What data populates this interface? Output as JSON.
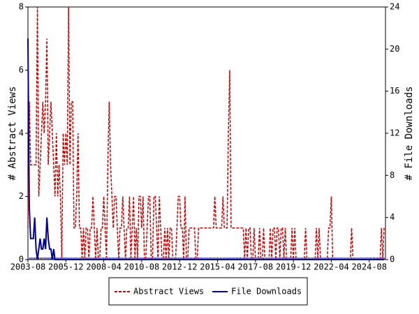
{
  "chart_data": {
    "type": "line",
    "xticks": [
      "2003-08",
      "2005-12",
      "2008-04",
      "2010-08",
      "2012-12",
      "2015-04",
      "2017-08",
      "2019-12",
      "2022-04",
      "2024-08"
    ],
    "ylabel": "# Abstract Views",
    "y2label": "# File Downloads",
    "ylim": [
      0,
      8
    ],
    "yticks": [
      0,
      2,
      4,
      6,
      8
    ],
    "y2lim": [
      0,
      24
    ],
    "y2ticks": [
      0,
      4,
      8,
      12,
      16,
      20,
      24
    ],
    "legend": "bottom",
    "x": [
      "2003-08",
      "2003-09",
      "2003-10",
      "2003-11",
      "2003-12",
      "2004-01",
      "2004-02",
      "2004-03",
      "2004-04",
      "2004-05",
      "2004-06",
      "2004-07",
      "2004-08",
      "2004-09",
      "2004-10",
      "2004-11",
      "2004-12",
      "2005-01",
      "2005-02",
      "2005-03",
      "2005-04",
      "2005-05",
      "2005-06",
      "2005-07",
      "2005-08",
      "2005-09",
      "2005-10",
      "2005-11",
      "2005-12",
      "2006-01",
      "2006-02",
      "2006-03",
      "2006-04",
      "2006-05",
      "2006-06",
      "2006-07",
      "2006-08",
      "2006-09",
      "2006-10",
      "2006-11",
      "2006-12",
      "2007-01",
      "2007-02",
      "2007-03",
      "2007-04",
      "2007-05",
      "2007-06",
      "2007-07",
      "2007-08",
      "2007-09",
      "2007-10",
      "2007-11",
      "2007-12",
      "2008-01",
      "2008-02",
      "2008-03",
      "2008-04",
      "2008-05",
      "2008-06",
      "2008-07",
      "2008-08",
      "2008-09",
      "2008-10",
      "2008-11",
      "2008-12",
      "2009-01",
      "2009-02",
      "2009-03",
      "2009-04",
      "2009-05",
      "2009-06",
      "2009-07",
      "2009-08",
      "2009-09",
      "2009-10",
      "2009-11",
      "2009-12",
      "2010-01",
      "2010-02",
      "2010-03",
      "2010-04",
      "2010-05",
      "2010-06",
      "2010-07",
      "2010-08",
      "2010-09",
      "2010-10",
      "2010-11",
      "2010-12",
      "2011-01",
      "2011-02",
      "2011-03",
      "2011-04",
      "2011-05",
      "2011-06",
      "2011-07",
      "2011-08",
      "2011-09",
      "2011-10",
      "2011-11",
      "2011-12",
      "2012-01",
      "2012-02",
      "2012-03",
      "2012-04",
      "2012-05",
      "2012-06",
      "2012-07",
      "2012-08",
      "2012-09",
      "2012-10",
      "2012-11",
      "2012-12",
      "2013-01",
      "2013-02",
      "2013-03",
      "2013-04",
      "2013-05",
      "2013-06",
      "2013-07",
      "2013-08",
      "2013-09",
      "2013-10",
      "2013-11",
      "2013-12",
      "2014-01",
      "2014-02",
      "2014-03",
      "2014-04",
      "2014-05",
      "2014-06",
      "2014-07",
      "2014-08",
      "2014-09",
      "2014-10",
      "2014-11",
      "2014-12",
      "2015-01",
      "2015-02",
      "2015-03",
      "2015-04",
      "2015-05",
      "2015-06",
      "2015-07",
      "2015-08",
      "2015-09",
      "2015-10",
      "2015-11",
      "2015-12",
      "2016-01",
      "2016-02",
      "2016-03",
      "2016-04",
      "2016-05",
      "2016-06",
      "2016-07",
      "2016-08",
      "2016-09",
      "2016-10",
      "2016-11",
      "2016-12",
      "2017-01",
      "2017-02",
      "2017-03",
      "2017-04",
      "2017-05",
      "2017-06",
      "2017-07",
      "2017-08",
      "2017-09",
      "2017-10",
      "2017-11",
      "2017-12",
      "2018-01",
      "2018-02",
      "2018-03",
      "2018-04",
      "2018-05",
      "2018-06",
      "2018-07",
      "2018-08",
      "2018-09",
      "2018-10",
      "2018-11",
      "2018-12",
      "2019-01",
      "2019-02",
      "2019-03",
      "2019-04",
      "2019-05",
      "2019-06",
      "2019-07",
      "2019-08",
      "2019-09",
      "2019-10",
      "2019-11",
      "2019-12",
      "2020-01",
      "2020-02",
      "2020-03",
      "2020-04",
      "2020-05",
      "2020-06",
      "2020-07",
      "2020-08",
      "2020-09",
      "2020-10",
      "2020-11",
      "2020-12",
      "2021-01",
      "2021-02",
      "2021-03",
      "2021-04",
      "2021-05",
      "2021-06",
      "2021-07",
      "2021-08",
      "2021-09",
      "2021-10",
      "2021-11",
      "2021-12",
      "2022-01",
      "2022-02",
      "2022-03",
      "2022-04",
      "2022-05",
      "2022-06",
      "2022-07",
      "2022-08",
      "2022-09",
      "2022-10",
      "2022-11",
      "2022-12",
      "2023-01",
      "2023-02",
      "2023-03",
      "2023-04",
      "2023-05",
      "2023-06",
      "2023-07",
      "2023-08",
      "2023-09",
      "2023-10",
      "2023-11",
      "2023-12",
      "2024-01",
      "2024-02",
      "2024-03",
      "2024-04",
      "2024-05",
      "2024-06",
      "2024-07",
      "2024-08",
      "2024-09",
      "2024-10",
      "2024-11",
      "2024-12",
      "2025-01",
      "2025-02",
      "2025-03",
      "2025-04",
      "2025-05",
      "2025-06",
      "2025-07"
    ],
    "series": [
      {
        "name": "Abstract Views",
        "color": "#cc0000",
        "axis": "y",
        "values": [
          1,
          5,
          3,
          3,
          3,
          3,
          3,
          8,
          2,
          3,
          4,
          5,
          4,
          5,
          7,
          3,
          4,
          5,
          4,
          3,
          2,
          4,
          2,
          3,
          2,
          0,
          4,
          3,
          4,
          3,
          8,
          3,
          5,
          5,
          1,
          1,
          2,
          4,
          1,
          1,
          0,
          1,
          0,
          1,
          1,
          0,
          1,
          1,
          2,
          1,
          0,
          1,
          0,
          0,
          1,
          1,
          2,
          1,
          0,
          3,
          5,
          3,
          2,
          1,
          2,
          2,
          1,
          0,
          1,
          1,
          2,
          1,
          0,
          1,
          1,
          2,
          0,
          1,
          2,
          0,
          1,
          0,
          2,
          2,
          1,
          2,
          0,
          0,
          1,
          2,
          2,
          0,
          0,
          2,
          2,
          1,
          0,
          2,
          1,
          0,
          0,
          1,
          0,
          1,
          0,
          1,
          1,
          0,
          0,
          0,
          1,
          2,
          2,
          1,
          1,
          0,
          2,
          0,
          0,
          1,
          1,
          1,
          1,
          1,
          0,
          0,
          1,
          1,
          1,
          1,
          1,
          1,
          1,
          1,
          1,
          1,
          1,
          1,
          2,
          1,
          1,
          1,
          1,
          1,
          2,
          1,
          1,
          1,
          4,
          6,
          1,
          1,
          1,
          1,
          1,
          1,
          1,
          1,
          1,
          1,
          0,
          1,
          0,
          1,
          1,
          0,
          0,
          1,
          0,
          0,
          0,
          1,
          0,
          0,
          1,
          0,
          0,
          0,
          0,
          1,
          0,
          1,
          1,
          0,
          1,
          1,
          0,
          1,
          1,
          0,
          1,
          0,
          0,
          0,
          0,
          1,
          0,
          1,
          0,
          0,
          0,
          0,
          0,
          0,
          0,
          1,
          0,
          0,
          0,
          0,
          0,
          0,
          0,
          1,
          0,
          1,
          0,
          0,
          0,
          0,
          0,
          0,
          1,
          1,
          2,
          0,
          0,
          0,
          0,
          0,
          0,
          0,
          0,
          0,
          0,
          0,
          0,
          0,
          0,
          1,
          0,
          0,
          0,
          0,
          0,
          0,
          0,
          0,
          0,
          0,
          0,
          0,
          0,
          0,
          0,
          0,
          0,
          0,
          0,
          0,
          0,
          1,
          0,
          1
        ]
      },
      {
        "name": "File Downloads",
        "color": "#000099",
        "axis": "y2",
        "values": [
          21,
          5,
          2,
          2,
          2,
          4,
          1,
          0,
          1,
          2,
          1,
          1,
          2,
          1,
          4,
          2,
          1,
          1,
          0,
          1,
          0,
          0,
          0,
          0,
          0,
          0,
          0,
          0,
          0,
          0,
          0,
          0,
          0,
          0,
          0,
          0,
          0,
          0,
          0,
          0,
          0,
          0,
          0,
          0,
          0,
          0,
          0,
          0,
          0,
          0,
          0,
          0,
          0,
          0,
          0,
          0,
          0,
          0,
          0,
          0,
          0,
          0,
          0,
          0,
          0,
          0,
          0,
          0,
          0,
          0,
          0,
          0,
          0,
          0,
          0,
          0,
          0,
          0,
          0,
          0,
          0,
          0,
          0,
          0,
          0,
          0,
          0,
          0,
          0,
          0,
          0,
          0,
          0,
          0,
          0,
          0,
          0,
          0,
          0,
          0,
          0,
          0,
          0,
          0,
          0,
          0,
          0,
          0,
          0,
          0,
          0,
          0,
          0,
          0,
          0,
          0,
          0,
          0,
          0,
          0,
          0,
          0,
          0,
          0,
          0,
          0,
          0,
          0,
          0,
          0,
          0,
          0,
          0,
          0,
          0,
          0,
          0,
          0,
          0,
          0,
          0,
          0,
          0,
          0,
          0,
          0,
          0,
          0,
          0,
          0,
          0,
          0,
          0,
          0,
          0,
          0,
          0,
          0,
          0,
          0,
          0,
          0,
          0,
          0,
          0,
          0,
          0,
          0,
          0,
          0,
          0,
          0,
          0,
          0,
          0,
          0,
          0,
          0,
          0,
          0,
          0,
          0,
          0,
          0,
          0,
          0,
          0,
          0,
          0,
          0,
          0,
          0,
          0,
          0,
          0,
          0,
          0,
          0,
          0,
          0,
          0,
          0,
          0,
          0,
          0,
          0,
          0,
          0,
          0,
          0,
          0,
          0,
          0,
          0,
          0,
          0,
          0,
          0,
          0,
          0,
          0,
          0,
          0,
          0,
          0,
          0,
          0,
          0,
          0,
          0,
          0,
          0,
          0,
          0,
          0,
          0,
          0,
          0,
          0,
          0,
          0,
          0,
          0,
          0,
          0,
          0,
          0,
          0,
          0,
          0,
          0,
          0,
          0,
          0,
          0,
          0,
          0,
          0,
          0,
          0,
          0,
          0,
          0,
          0
        ]
      }
    ]
  }
}
